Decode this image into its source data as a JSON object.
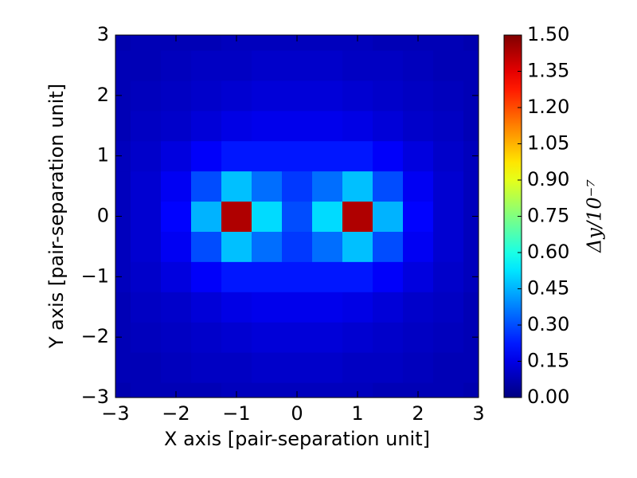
{
  "chart_data": {
    "type": "heatmap",
    "xlabel": "X axis [pair-separation unit]",
    "ylabel": "Y axis [pair-separation unit]",
    "colorbar_label": "Δy/10⁻⁷",
    "colormap": "jet",
    "x": [
      -3,
      -2.5,
      -2,
      -1.5,
      -1,
      -0.5,
      0,
      0.5,
      1,
      1.5,
      2,
      2.5,
      3
    ],
    "y": [
      -3,
      -2.5,
      -2,
      -1.5,
      -1,
      -0.5,
      0,
      0.5,
      1,
      1.5,
      2,
      2.5,
      3
    ],
    "z": [
      [
        0.07,
        0.08,
        0.08,
        0.08,
        0.09,
        0.09,
        0.09,
        0.09,
        0.09,
        0.08,
        0.08,
        0.08,
        0.07
      ],
      [
        0.08,
        0.08,
        0.09,
        0.1,
        0.1,
        0.11,
        0.11,
        0.11,
        0.1,
        0.1,
        0.09,
        0.08,
        0.08
      ],
      [
        0.08,
        0.09,
        0.1,
        0.11,
        0.12,
        0.13,
        0.13,
        0.13,
        0.12,
        0.11,
        0.1,
        0.09,
        0.08
      ],
      [
        0.08,
        0.1,
        0.11,
        0.13,
        0.15,
        0.16,
        0.16,
        0.16,
        0.15,
        0.13,
        0.11,
        0.1,
        0.08
      ],
      [
        0.09,
        0.11,
        0.14,
        0.18,
        0.22,
        0.22,
        0.22,
        0.22,
        0.22,
        0.18,
        0.14,
        0.11,
        0.09
      ],
      [
        0.09,
        0.12,
        0.17,
        0.3,
        0.47,
        0.35,
        0.27,
        0.35,
        0.47,
        0.3,
        0.17,
        0.12,
        0.09
      ],
      [
        0.09,
        0.12,
        0.19,
        0.45,
        1.43,
        0.51,
        0.3,
        0.51,
        1.43,
        0.45,
        0.19,
        0.12,
        0.09
      ],
      [
        0.09,
        0.12,
        0.17,
        0.3,
        0.47,
        0.35,
        0.27,
        0.35,
        0.47,
        0.3,
        0.17,
        0.12,
        0.09
      ],
      [
        0.09,
        0.11,
        0.14,
        0.18,
        0.22,
        0.22,
        0.22,
        0.22,
        0.22,
        0.18,
        0.14,
        0.11,
        0.09
      ],
      [
        0.08,
        0.1,
        0.11,
        0.13,
        0.15,
        0.16,
        0.16,
        0.16,
        0.15,
        0.13,
        0.11,
        0.1,
        0.08
      ],
      [
        0.08,
        0.09,
        0.1,
        0.11,
        0.12,
        0.13,
        0.13,
        0.13,
        0.12,
        0.11,
        0.1,
        0.09,
        0.08
      ],
      [
        0.08,
        0.08,
        0.09,
        0.1,
        0.1,
        0.11,
        0.11,
        0.11,
        0.1,
        0.1,
        0.09,
        0.08,
        0.08
      ],
      [
        0.07,
        0.08,
        0.08,
        0.08,
        0.09,
        0.09,
        0.09,
        0.09,
        0.09,
        0.08,
        0.08,
        0.08,
        0.07
      ]
    ],
    "xlim": [
      -3,
      3
    ],
    "ylim": [
      -3,
      3
    ],
    "xticks": [
      {
        "value": -3,
        "label": "−3"
      },
      {
        "value": -2,
        "label": "−2"
      },
      {
        "value": -1,
        "label": "−1"
      },
      0,
      1,
      2,
      3
    ],
    "yticks": [
      {
        "value": -3,
        "label": "−3"
      },
      {
        "value": -2,
        "label": "−2"
      },
      {
        "value": -1,
        "label": "−1"
      },
      0,
      1,
      2,
      3
    ],
    "clim": [
      0,
      1.5
    ],
    "cticks": [
      {
        "value": 0,
        "label": "0.00"
      },
      {
        "value": 0.15,
        "label": "0.15"
      },
      {
        "value": 0.3,
        "label": "0.30"
      },
      {
        "value": 0.45,
        "label": "0.45"
      },
      {
        "value": 0.6,
        "label": "0.60"
      },
      {
        "value": 0.75,
        "label": "0.75"
      },
      {
        "value": 0.9,
        "label": "0.90"
      },
      {
        "value": 1.05,
        "label": "1.05"
      },
      {
        "value": 1.2,
        "label": "1.20"
      },
      {
        "value": 1.35,
        "label": "1.35"
      },
      {
        "value": 1.5,
        "label": "1.50"
      }
    ]
  }
}
